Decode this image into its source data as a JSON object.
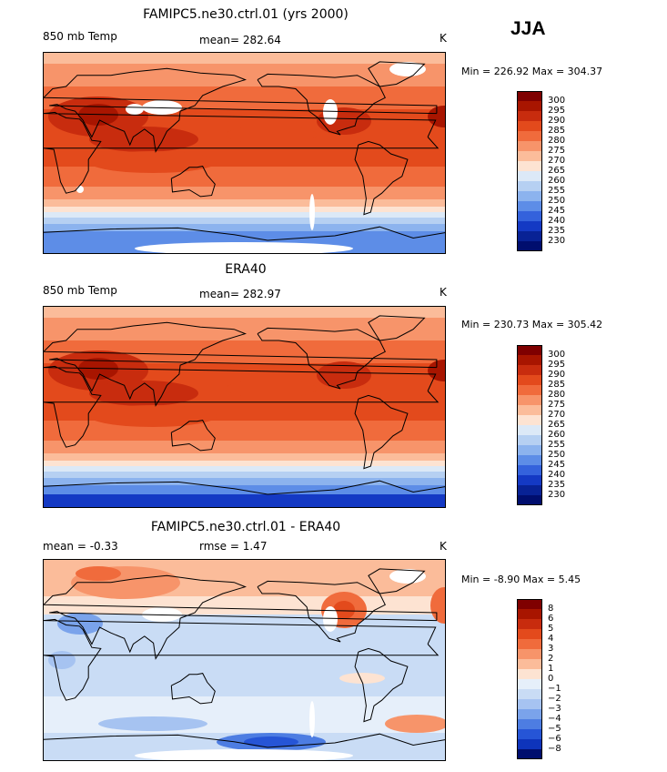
{
  "header": {
    "season": "JJA"
  },
  "panels": [
    {
      "id": "model",
      "title": "FAMIPC5.ne30.ctrl.01 (yrs 2000)",
      "left_label": "850 mb Temp",
      "center_label": "mean= 282.64",
      "units": "K",
      "minmax": "Min = 226.92 Max = 304.37",
      "colorbar_labels": [
        "300",
        "295",
        "290",
        "285",
        "280",
        "275",
        "270",
        "265",
        "260",
        "255",
        "250",
        "245",
        "240",
        "235",
        "230"
      ]
    },
    {
      "id": "obs",
      "title": "ERA40",
      "left_label": "850 mb Temp",
      "center_label": "mean= 282.97",
      "units": "K",
      "minmax": "Min = 230.73 Max = 305.42",
      "colorbar_labels": [
        "300",
        "295",
        "290",
        "285",
        "280",
        "275",
        "270",
        "265",
        "260",
        "255",
        "250",
        "245",
        "240",
        "235",
        "230"
      ]
    },
    {
      "id": "diff",
      "title": "FAMIPC5.ne30.ctrl.01 - ERA40",
      "left_label": "mean =   -0.33",
      "center_label": "rmse =    1.47",
      "units": "K",
      "minmax": "Min =  -8.90 Max =   5.45",
      "colorbar_labels": [
        "8",
        "6",
        "5",
        "4",
        "3",
        "2",
        "1",
        "0",
        "−1",
        "−2",
        "−3",
        "−4",
        "−5",
        "−6",
        "−8"
      ]
    }
  ],
  "palette": {
    "warm_to_cold": [
      "#7f0000",
      "#a81500",
      "#c82c0e",
      "#e34a1c",
      "#f06b3c",
      "#f7946a",
      "#fbbc9a",
      "#fde3d2",
      "#dce9f7",
      "#b6d0f2",
      "#8cb3ee",
      "#5d8de7",
      "#3462dc",
      "#1439c4",
      "#082295",
      "#000e6e"
    ],
    "diff": [
      "#7f0000",
      "#a81500",
      "#c82c0e",
      "#e34a1c",
      "#f06b3c",
      "#f7946a",
      "#fbbc9a",
      "#fde3d2",
      "#e6effa",
      "#c9dcf5",
      "#a6c3f1",
      "#7aa3eb",
      "#4d7de2",
      "#2655d6",
      "#0e34bb",
      "#000e6e"
    ],
    "missing": "#ffffff"
  }
}
